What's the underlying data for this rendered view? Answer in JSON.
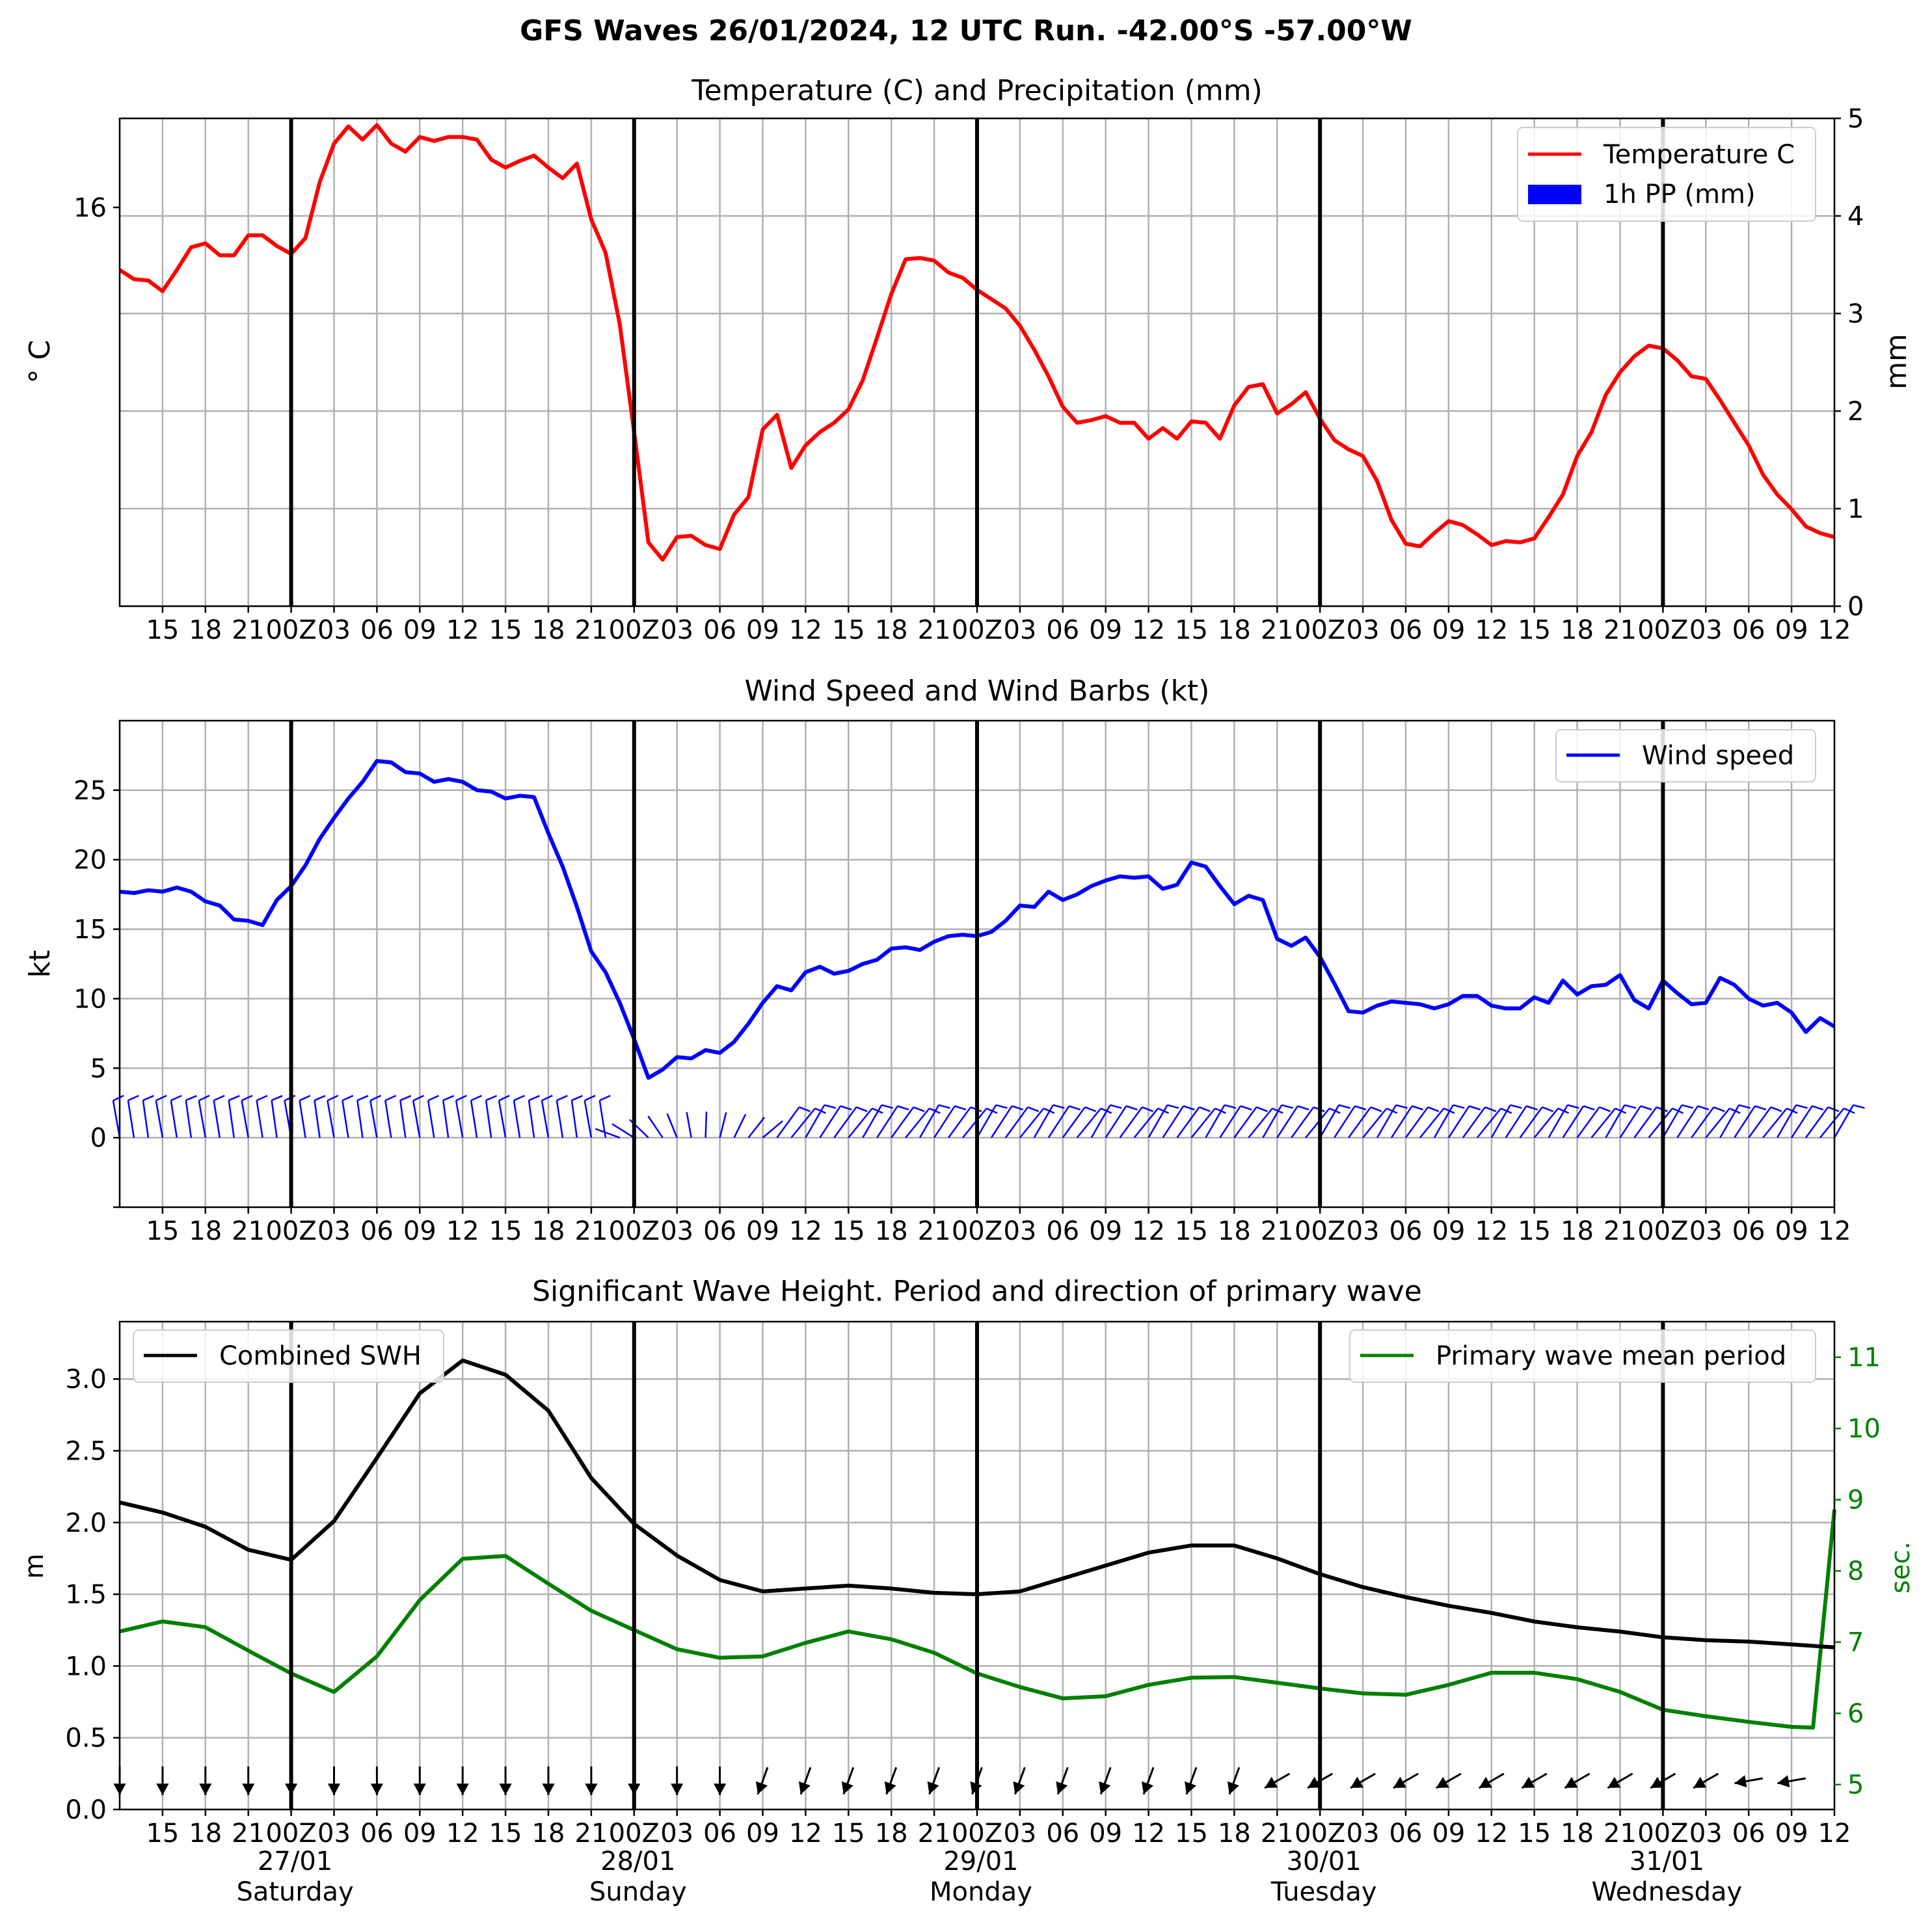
{
  "figure": {
    "title": "GFS Waves 26/01/2024, 12 UTC Run. -42.00°S -57.00°W"
  },
  "time_axis": {
    "start": "2024-01-26 12:00 UTC",
    "end": "2024-01-31 12:00 UTC",
    "tick_labels": [
      "15",
      "18",
      "21",
      "00Z",
      "03",
      "06",
      "09",
      "12",
      "15",
      "18",
      "21",
      "00Z",
      "03",
      "06",
      "09",
      "12",
      "15",
      "18",
      "21",
      "00Z",
      "03",
      "06",
      "09",
      "12",
      "15",
      "18",
      "21",
      "00Z",
      "03",
      "06",
      "09",
      "12",
      "15",
      "18",
      "21",
      "00Z",
      "03",
      "06",
      "09",
      "12"
    ],
    "day_labels": [
      {
        "date": "27/01",
        "weekday": "Saturday"
      },
      {
        "date": "28/01",
        "weekday": "Sunday"
      },
      {
        "date": "29/01",
        "weekday": "Monday"
      },
      {
        "date": "30/01",
        "weekday": "Tuesday"
      },
      {
        "date": "31/01",
        "weekday": "Wednesday"
      }
    ]
  },
  "chart_data": [
    {
      "type": "line",
      "title": "Temperature (C) and Precipitation (mm)",
      "ylabel": "° C",
      "ylabel_right": "mm",
      "ylim": [
        13.0,
        16.67
      ],
      "y_ticks": [
        16
      ],
      "ylim_right": [
        0,
        5
      ],
      "y_ticks_right": [
        0,
        1,
        2,
        3,
        4,
        5
      ],
      "grid": true,
      "legend": "upper right",
      "legend_entries": [
        "Temperature C",
        "1h PP (mm)"
      ],
      "colors": {
        "temperature": "#ff0000",
        "precip": "#0000ff"
      },
      "precip_values_mm": [],
      "series": [
        {
          "name": "Temperature C",
          "color": "#ff0000",
          "x_hours_from_start": [
            0,
            1,
            2,
            3,
            4,
            5,
            6,
            7,
            8,
            9,
            10,
            11,
            12,
            13,
            14,
            15,
            16,
            17,
            18,
            19,
            20,
            21,
            22,
            23,
            24,
            25,
            26,
            27,
            28,
            29,
            30,
            31,
            32,
            33,
            34,
            35,
            36,
            37,
            38,
            39,
            40,
            41,
            42,
            43,
            44,
            45,
            46,
            47,
            48,
            49,
            50,
            51,
            52,
            53,
            54,
            55,
            56,
            57,
            58,
            59,
            60,
            61,
            62,
            63,
            64,
            65,
            66,
            67,
            68,
            69,
            70,
            71,
            72,
            73,
            74,
            75,
            76,
            77,
            78,
            79,
            80,
            81,
            82,
            83,
            84,
            85,
            86,
            87,
            88,
            89,
            90,
            91,
            92,
            93,
            94,
            95,
            96,
            97,
            98,
            99,
            100,
            101,
            102,
            103,
            104,
            105,
            106,
            107,
            108,
            109,
            110,
            111,
            112,
            113,
            114,
            115,
            116,
            117,
            118,
            119,
            120
          ],
          "values": [
            15.53,
            15.46,
            15.45,
            15.37,
            15.53,
            15.7,
            15.73,
            15.64,
            15.64,
            15.79,
            15.79,
            15.71,
            15.65,
            15.77,
            16.19,
            16.48,
            16.61,
            16.51,
            16.62,
            16.48,
            16.42,
            16.53,
            16.5,
            16.53,
            16.53,
            16.51,
            16.36,
            16.3,
            16.35,
            16.39,
            16.3,
            16.22,
            16.33,
            15.91,
            15.66,
            15.12,
            14.31,
            13.48,
            13.35,
            13.52,
            13.53,
            13.46,
            13.43,
            13.69,
            13.82,
            14.33,
            14.44,
            14.04,
            14.21,
            14.31,
            14.38,
            14.48,
            14.7,
            15.02,
            15.35,
            15.61,
            15.62,
            15.6,
            15.51,
            15.47,
            15.38,
            15.31,
            15.24,
            15.11,
            14.93,
            14.73,
            14.5,
            14.38,
            14.4,
            14.43,
            14.38,
            14.38,
            14.26,
            14.34,
            14.26,
            14.39,
            14.38,
            14.26,
            14.51,
            14.65,
            14.67,
            14.45,
            14.52,
            14.61,
            14.41,
            14.25,
            14.18,
            14.13,
            13.94,
            13.65,
            13.47,
            13.45,
            13.55,
            13.64,
            13.61,
            13.54,
            13.46,
            13.49,
            13.48,
            13.51,
            13.67,
            13.84,
            14.13,
            14.31,
            14.59,
            14.76,
            14.88,
            14.96,
            14.94,
            14.85,
            14.73,
            14.71,
            14.55,
            14.38,
            14.21,
            13.99,
            13.84,
            13.73,
            13.6,
            13.55,
            13.52,
            13.38,
            13.43,
            13.56
          ]
        }
      ]
    },
    {
      "type": "line",
      "title": "Wind Speed and Wind Barbs (kt)",
      "ylabel": "kt",
      "ylim": [
        -5,
        30
      ],
      "y_ticks": [
        0,
        5,
        10,
        15,
        20,
        25
      ],
      "grid": true,
      "legend": "upper right",
      "legend_entries": [
        "Wind speed"
      ],
      "barbs": "wind barbs drawn along y = 0 every hour; light northerly/north-easterly winds near 28/01 00Z–09Z, otherwise from the south-west and west",
      "series": [
        {
          "name": "Wind speed",
          "color": "#0000ff",
          "x_hours_from_start": [
            0,
            1,
            2,
            3,
            4,
            5,
            6,
            7,
            8,
            9,
            10,
            11,
            12,
            13,
            14,
            15,
            16,
            17,
            18,
            19,
            20,
            21,
            22,
            23,
            24,
            25,
            26,
            27,
            28,
            29,
            30,
            31,
            32,
            33,
            34,
            35,
            36,
            37,
            38,
            39,
            40,
            41,
            42,
            43,
            44,
            45,
            46,
            47,
            48,
            49,
            50,
            51,
            52,
            53,
            54,
            55,
            56,
            57,
            58,
            59,
            60,
            61,
            62,
            63,
            64,
            65,
            66,
            67,
            68,
            69,
            70,
            71,
            72,
            73,
            74,
            75,
            76,
            77,
            78,
            79,
            80,
            81,
            82,
            83,
            84,
            85,
            86,
            87,
            88,
            89,
            90,
            91,
            92,
            93,
            94,
            95,
            96,
            97,
            98,
            99,
            100,
            101,
            102,
            103,
            104,
            105,
            106,
            107,
            108,
            109,
            110,
            111,
            112,
            113,
            114,
            115,
            116,
            117,
            118,
            119,
            120
          ],
          "values": [
            17.7,
            17.6,
            17.8,
            17.7,
            18.0,
            17.7,
            17.0,
            16.7,
            15.7,
            15.6,
            15.3,
            17.1,
            18.1,
            19.6,
            21.5,
            23.0,
            24.4,
            25.6,
            27.1,
            27.0,
            26.3,
            26.2,
            25.6,
            25.8,
            25.6,
            25.0,
            24.9,
            24.4,
            24.6,
            24.5,
            21.9,
            19.5,
            16.6,
            13.4,
            11.9,
            9.7,
            7.1,
            4.3,
            4.9,
            5.8,
            5.7,
            6.3,
            6.1,
            6.9,
            8.2,
            9.7,
            10.9,
            10.6,
            11.9,
            12.3,
            11.8,
            12.0,
            12.5,
            12.8,
            13.6,
            13.7,
            13.5,
            14.1,
            14.5,
            14.6,
            14.5,
            14.8,
            15.6,
            16.7,
            16.6,
            17.7,
            17.1,
            17.5,
            18.1,
            18.5,
            18.8,
            18.7,
            18.8,
            17.9,
            18.2,
            19.8,
            19.5,
            18.1,
            16.8,
            17.4,
            17.1,
            14.3,
            13.8,
            14.4,
            13.0,
            11.1,
            9.1,
            9.0,
            9.5,
            9.8,
            9.7,
            9.6,
            9.3,
            9.6,
            10.2,
            10.2,
            9.5,
            9.3,
            9.3,
            10.1,
            9.7,
            11.3,
            10.3,
            10.9,
            11.0,
            11.7,
            9.9,
            9.3,
            11.3,
            10.4,
            9.6,
            9.7,
            11.5,
            11.0,
            10.0,
            9.5,
            9.7,
            9.0,
            7.6,
            8.6,
            8.0
          ]
        }
      ]
    },
    {
      "type": "line",
      "title": "Significant Wave Height. Period and direction of primary wave",
      "ylabel": "m",
      "ylabel_right": "sec.",
      "ylim": [
        0,
        3.4
      ],
      "y_ticks": [
        0.0,
        0.5,
        1.0,
        1.5,
        2.0,
        2.5,
        3.0
      ],
      "ylim_right": [
        4.65,
        11.5
      ],
      "y_ticks_right": [
        5,
        6,
        7,
        8,
        9,
        10,
        11
      ],
      "grid": true,
      "legend": "upper left and upper right",
      "legend_entries": [
        "Combined SWH",
        "Primary wave mean period"
      ],
      "arrows": "primary wave direction arrows drawn along y = 0.2 m every 3 h",
      "series": [
        {
          "name": "Combined SWH",
          "color": "#000000",
          "x_hours_from_start": [
            0,
            3,
            6,
            9,
            12,
            15,
            18,
            21,
            24,
            27,
            30,
            33,
            36,
            39,
            42,
            45,
            48,
            51,
            54,
            57,
            60,
            63,
            66,
            69,
            72,
            75,
            78,
            81,
            84,
            87,
            90,
            93,
            96,
            99,
            102,
            105,
            108,
            111,
            114,
            117,
            120
          ],
          "values": [
            2.14,
            2.07,
            1.97,
            1.81,
            1.74,
            2.01,
            2.45,
            2.9,
            3.13,
            3.03,
            2.78,
            2.31,
            1.99,
            1.77,
            1.6,
            1.52,
            1.54,
            1.56,
            1.54,
            1.51,
            1.5,
            1.52,
            1.61,
            1.7,
            1.79,
            1.84,
            1.84,
            1.75,
            1.64,
            1.55,
            1.48,
            1.42,
            1.37,
            1.31,
            1.27,
            1.24,
            1.2,
            1.18,
            1.17,
            1.15,
            1.13
          ]
        },
        {
          "name": "Primary wave mean period",
          "color": "#008000",
          "x_hours_from_start": [
            0,
            3,
            6,
            9,
            12,
            15,
            18,
            21,
            24,
            27,
            30,
            33,
            36,
            39,
            42,
            45,
            48,
            51,
            54,
            57,
            60,
            63,
            66,
            69,
            72,
            75,
            78,
            81,
            84,
            87,
            90,
            93,
            96,
            99,
            102,
            105,
            108,
            111,
            114,
            117,
            118.5,
            120
          ],
          "values": [
            7.15,
            7.29,
            7.21,
            6.88,
            6.56,
            6.3,
            6.8,
            7.59,
            8.17,
            8.21,
            7.82,
            7.44,
            7.17,
            6.9,
            6.78,
            6.8,
            6.99,
            7.15,
            7.04,
            6.85,
            6.56,
            6.37,
            6.21,
            6.24,
            6.4,
            6.5,
            6.51,
            6.43,
            6.35,
            6.28,
            6.26,
            6.4,
            6.57,
            6.57,
            6.48,
            6.3,
            6.05,
            5.96,
            5.88,
            5.81,
            5.8,
            8.86
          ]
        }
      ]
    }
  ]
}
